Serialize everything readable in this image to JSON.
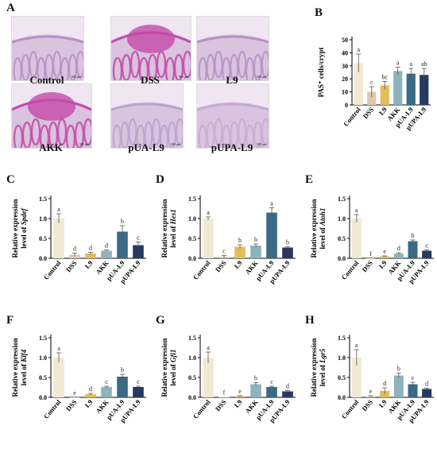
{
  "panels": {
    "A": "A",
    "B": "B",
    "C": "C",
    "D": "D",
    "E": "E",
    "F": "F",
    "G": "G",
    "H": "H"
  },
  "histology": {
    "scale_bar": "300 μm",
    "images": [
      {
        "label": "Control",
        "stain": "#b98fc6"
      },
      {
        "label": "DSS",
        "stain": "#c44aa8"
      },
      {
        "label": "L9",
        "stain": "#b98fc6"
      },
      {
        "label": "AKK",
        "stain": "#c44aa8"
      },
      {
        "label": "pUA-L9",
        "stain": "#b9a3cf"
      },
      {
        "label": "pUPA-L9",
        "stain": "#c9a9d3"
      }
    ]
  },
  "colors": [
    "#f1ead3",
    "#ddc9ad",
    "#e3bd5a",
    "#8fb3ba",
    "#3a6a86",
    "#25385e"
  ],
  "chart_data": [
    {
      "id": "B",
      "type": "bar",
      "categories": [
        "Control",
        "DSS",
        "L9",
        "AKK",
        "pUA-L9",
        "pUPA-L9"
      ],
      "values": [
        32,
        10,
        15,
        26,
        24,
        23
      ],
      "errors": [
        7,
        4,
        3,
        3,
        4,
        5
      ],
      "letters": [
        "a",
        "c",
        "bc",
        "a",
        "a",
        "ab"
      ],
      "ylabel": "PAS⁺ cells/crypt",
      "ylim": [
        0,
        50
      ],
      "yticks": [
        "0",
        "10",
        "20",
        "30",
        "40",
        "50"
      ]
    },
    {
      "id": "C",
      "type": "bar",
      "categories": [
        "Control",
        "DSS",
        "L9",
        "AKK",
        "pUA-L9",
        "pUPA-L9"
      ],
      "values": [
        1.0,
        0.09,
        0.12,
        0.19,
        0.67,
        0.33
      ],
      "errors": [
        0.12,
        0.04,
        0.03,
        0.02,
        0.15,
        0.08
      ],
      "letters": [
        "a",
        "d",
        "d",
        "d",
        "b",
        "c"
      ],
      "ylabel_top": "Relative expression",
      "ylabel_prefix": "level of ",
      "gene": "Spdef",
      "ylim": [
        0,
        1.5
      ],
      "yticks": [
        "0.0",
        "0.5",
        "1.0",
        "1.5"
      ]
    },
    {
      "id": "D",
      "type": "bar",
      "categories": [
        "Control",
        "DSS",
        "L9",
        "AKK",
        "pUA-L9",
        "pUPA-L9"
      ],
      "values": [
        1.0,
        0.04,
        0.29,
        0.32,
        1.15,
        0.27
      ],
      "errors": [
        0.04,
        0.03,
        0.05,
        0.04,
        0.12,
        0.02
      ],
      "letters": [
        "a",
        "c",
        "b",
        "b",
        "a",
        "b"
      ],
      "ylabel_top": "Relative expression",
      "ylabel_prefix": "level of ",
      "gene": "Hes1",
      "ylim": [
        0,
        1.5
      ],
      "yticks": [
        "0.0",
        "0.5",
        "1.0",
        "1.5"
      ]
    },
    {
      "id": "E",
      "type": "bar",
      "categories": [
        "Control",
        "DSS",
        "L9",
        "AKK",
        "pUA-L9",
        "pUPA-L9"
      ],
      "values": [
        1.0,
        0.0,
        0.05,
        0.12,
        0.43,
        0.19
      ],
      "errors": [
        0.1,
        0.0,
        0.01,
        0.02,
        0.03,
        0.02
      ],
      "letters": [
        "a",
        "f",
        "e",
        "d",
        "b",
        "c"
      ],
      "ylabel_top": "Relative expression",
      "ylabel_prefix": "level of ",
      "gene": "Atoh1",
      "ylim": [
        0,
        1.5
      ],
      "yticks": [
        "0.0",
        "0.5",
        "1.0",
        "1.5"
      ]
    },
    {
      "id": "F",
      "type": "bar",
      "categories": [
        "Control",
        "DSS",
        "L9",
        "AKK",
        "pUA-L9",
        "pUPA-L9"
      ],
      "values": [
        1.0,
        0.0,
        0.08,
        0.26,
        0.52,
        0.26
      ],
      "errors": [
        0.12,
        0.0,
        0.02,
        0.02,
        0.06,
        0.02
      ],
      "letters": [
        "a",
        "e",
        "d",
        "c",
        "b",
        "c"
      ],
      "ylabel_top": "Relative expression",
      "ylabel_prefix": "level of ",
      "gene": "Klf4",
      "ylim": [
        0,
        1.5
      ],
      "yticks": [
        "0.0",
        "0.5",
        "1.0",
        "1.5"
      ]
    },
    {
      "id": "G",
      "type": "bar",
      "categories": [
        "Control",
        "DSS",
        "L9",
        "AKK",
        "pUA-L9",
        "pUPA-L9"
      ],
      "values": [
        1.0,
        0.01,
        0.03,
        0.33,
        0.26,
        0.15
      ],
      "errors": [
        0.14,
        0.0,
        0.01,
        0.04,
        0.02,
        0.02
      ],
      "letters": [
        "a",
        "f",
        "e",
        "b",
        "c",
        "d"
      ],
      "ylabel_top": "Relative expression",
      "ylabel_prefix": "level of ",
      "gene": "Gfi1",
      "ylim": [
        0,
        1.5
      ],
      "yticks": [
        "0.0",
        "0.5",
        "1.0",
        "1.5"
      ]
    },
    {
      "id": "H",
      "type": "bar",
      "categories": [
        "Control",
        "DSS",
        "L9",
        "AKK",
        "pUA-L9",
        "pUPA-L9"
      ],
      "values": [
        1.0,
        0.03,
        0.16,
        0.55,
        0.33,
        0.21
      ],
      "errors": [
        0.2,
        0.01,
        0.08,
        0.06,
        0.05,
        0.02
      ],
      "letters": [
        "a",
        "e",
        "d",
        "b",
        "c",
        "d"
      ],
      "ylabel_top": "Relative expression",
      "ylabel_prefix": "level of ",
      "gene": "Lgr5",
      "ylim": [
        0,
        1.5
      ],
      "yticks": [
        "0.0",
        "0.5",
        "1.0",
        "1.5"
      ]
    }
  ]
}
